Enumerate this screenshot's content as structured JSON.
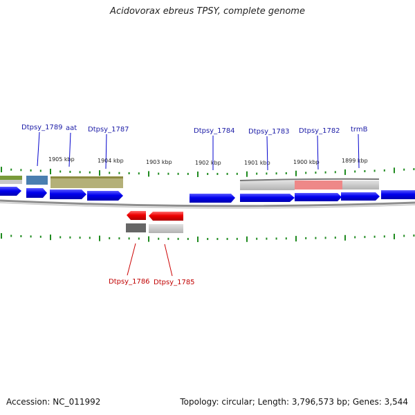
{
  "title": "Acidovorax ebreus TPSY, complete genome",
  "accession": "Accession: NC_011992",
  "topology": "Topology: circular; Length: 3,796,573 bp; Genes: 3,544",
  "ticks": [
    "1905 kbp",
    "1904 kbp",
    "1903 kbp",
    "1902 kbp",
    "1901 kbp",
    "1900 kbp",
    "1899 kbp"
  ],
  "forward_labels": [
    "Dtpsy_1789",
    "aat",
    "Dtpsy_1787",
    "Dtpsy_1784",
    "Dtpsy_1783",
    "Dtpsy_1782",
    "trmB"
  ],
  "reverse_labels": [
    "Dtpsy_1786",
    "Dtpsy_1785"
  ],
  "colors": {
    "forward_gene": "#0000ee",
    "reverse_gene": "#ee0000",
    "forward_label": "#1a1aa6",
    "reverse_label": "#c00000",
    "backbone": "#888888",
    "tick": "#1e8a1e",
    "olive_feature": "#b4b078",
    "steel_feature": "#4a7fb0",
    "grey_feature": "#c4c4c4",
    "pink_feature": "#ee8888",
    "dark_feature": "#666666"
  }
}
